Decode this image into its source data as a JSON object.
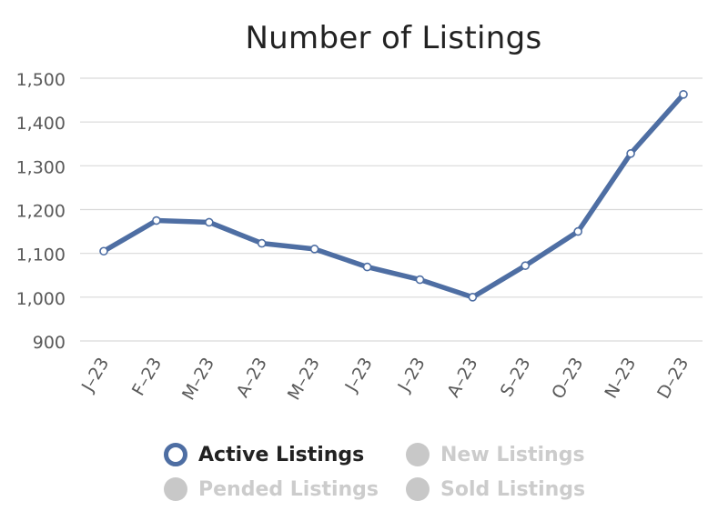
{
  "chart_data": {
    "type": "line",
    "title": "Number of Listings",
    "xlabel": "",
    "ylabel": "",
    "categories": [
      "J-23",
      "F-23",
      "M-23",
      "A-23",
      "M-23",
      "J-23",
      "J-23",
      "A-23",
      "S-23",
      "O-23",
      "N-23",
      "D-23"
    ],
    "series": [
      {
        "name": "Active Listings",
        "values": [
          1105,
          1175,
          1171,
          1123,
          1110,
          1069,
          1040,
          1000,
          1072,
          1150,
          1328,
          1463
        ],
        "visible": true
      }
    ],
    "ylim": [
      900,
      1500
    ],
    "yticks": [
      900,
      1000,
      1100,
      1200,
      1300,
      1400,
      1500
    ],
    "ytick_labels": [
      "900",
      "1,000",
      "1,100",
      "1,200",
      "1,300",
      "1,400",
      "1,500"
    ],
    "grid": true,
    "legend_position": "bottom"
  },
  "legend": {
    "items": [
      {
        "label": "Active Listings",
        "active": true
      },
      {
        "label": "New Listings",
        "active": false
      },
      {
        "label": "Pended Listings",
        "active": false
      },
      {
        "label": "Sold Listings",
        "active": false
      }
    ]
  },
  "colors": {
    "series": "#4e6ea3",
    "grid": "#d9d9d9",
    "axis_text": "#595959",
    "legend_inactive": "#c8c8c8",
    "legend_inactive_text": "#cccccc",
    "legend_active_text": "#222222"
  }
}
